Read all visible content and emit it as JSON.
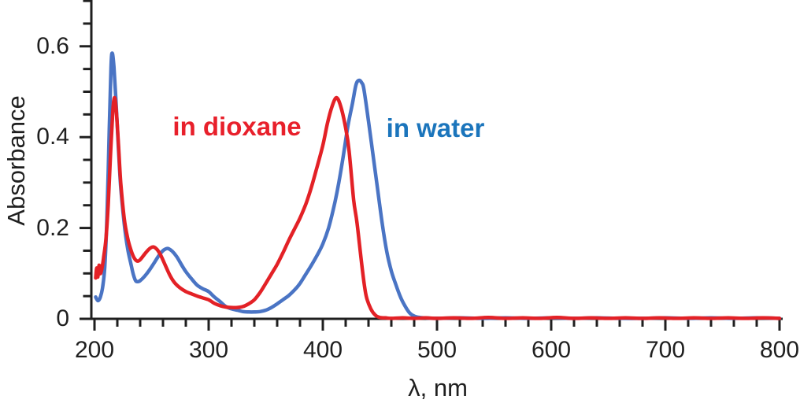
{
  "chart_data": {
    "type": "line",
    "title": "",
    "xlabel": "λ, nm",
    "ylabel": "Absorbance",
    "xlim": [
      200,
      800
    ],
    "ylim": [
      0,
      0.7
    ],
    "grid": false,
    "background": "#ffffff",
    "axis_color": "#1f1f1f",
    "x_major_ticks": [
      200,
      300,
      400,
      500,
      600,
      700,
      800
    ],
    "x_tick_labels": [
      "200",
      "300",
      "400",
      "500",
      "600",
      "700",
      "800"
    ],
    "x_minor_tick_step": 20,
    "y_major_ticks": [
      0,
      0.2,
      0.4,
      0.6
    ],
    "y_tick_labels": [
      "0",
      "0.2",
      "0.4",
      "0.6"
    ],
    "y_minor_tick_step": 0.05,
    "legend_position": "inline text annotations near main peaks",
    "annotations": [
      {
        "text": "in dioxane",
        "color": "#e8202b"
      },
      {
        "text": "in water",
        "color": "#1b75bc"
      }
    ],
    "series": [
      {
        "name": "in water",
        "color": "#4a74c4",
        "points": [
          [
            201,
            0.048
          ],
          [
            203,
            0.04
          ],
          [
            205,
            0.047
          ],
          [
            207,
            0.068
          ],
          [
            209,
            0.115
          ],
          [
            211,
            0.23
          ],
          [
            213,
            0.42
          ],
          [
            214.5,
            0.555
          ],
          [
            215.5,
            0.585
          ],
          [
            217,
            0.555
          ],
          [
            219,
            0.47
          ],
          [
            221,
            0.375
          ],
          [
            223,
            0.29
          ],
          [
            226,
            0.21
          ],
          [
            229,
            0.155
          ],
          [
            232,
            0.12
          ],
          [
            234,
            0.098
          ],
          [
            236,
            0.084
          ],
          [
            238,
            0.082
          ],
          [
            240,
            0.084
          ],
          [
            244,
            0.094
          ],
          [
            248,
            0.107
          ],
          [
            252,
            0.122
          ],
          [
            256,
            0.138
          ],
          [
            260,
            0.15
          ],
          [
            264,
            0.155
          ],
          [
            268,
            0.149
          ],
          [
            272,
            0.137
          ],
          [
            276,
            0.12
          ],
          [
            280,
            0.104
          ],
          [
            285,
            0.088
          ],
          [
            290,
            0.074
          ],
          [
            295,
            0.066
          ],
          [
            300,
            0.06
          ],
          [
            305,
            0.048
          ],
          [
            310,
            0.038
          ],
          [
            315,
            0.027
          ],
          [
            320,
            0.022
          ],
          [
            325,
            0.019
          ],
          [
            330,
            0.016
          ],
          [
            335,
            0.015
          ],
          [
            340,
            0.015
          ],
          [
            345,
            0.016
          ],
          [
            350,
            0.019
          ],
          [
            355,
            0.025
          ],
          [
            360,
            0.033
          ],
          [
            365,
            0.042
          ],
          [
            370,
            0.051
          ],
          [
            375,
            0.063
          ],
          [
            380,
            0.078
          ],
          [
            385,
            0.098
          ],
          [
            390,
            0.118
          ],
          [
            395,
            0.14
          ],
          [
            400,
            0.165
          ],
          [
            405,
            0.2
          ],
          [
            410,
            0.25
          ],
          [
            414,
            0.3
          ],
          [
            418,
            0.36
          ],
          [
            422,
            0.425
          ],
          [
            426,
            0.475
          ],
          [
            429,
            0.515
          ],
          [
            431.5,
            0.525
          ],
          [
            434,
            0.52
          ],
          [
            436,
            0.505
          ],
          [
            440,
            0.435
          ],
          [
            444,
            0.36
          ],
          [
            448,
            0.285
          ],
          [
            452,
            0.21
          ],
          [
            456,
            0.148
          ],
          [
            460,
            0.105
          ],
          [
            464,
            0.075
          ],
          [
            468,
            0.048
          ],
          [
            472,
            0.028
          ],
          [
            476,
            0.013
          ],
          [
            480,
            0.006
          ],
          [
            485,
            0.003
          ],
          [
            490,
            0.002
          ],
          [
            500,
            0.001
          ],
          [
            520,
            0.002
          ],
          [
            540,
            0.001
          ],
          [
            560,
            0.002
          ],
          [
            580,
            0.001
          ],
          [
            600,
            0.002
          ],
          [
            620,
            0.001
          ],
          [
            640,
            0.002
          ],
          [
            660,
            0.001
          ],
          [
            680,
            0.001
          ],
          [
            700,
            0.002
          ],
          [
            720,
            0.001
          ],
          [
            740,
            0.002
          ],
          [
            760,
            0.001
          ],
          [
            780,
            0.002
          ],
          [
            800,
            0.001
          ]
        ]
      },
      {
        "name": "in dioxane",
        "color": "#e32126",
        "points": [
          [
            201,
            0.09
          ],
          [
            202,
            0.112
          ],
          [
            203,
            0.092
          ],
          [
            204,
            0.118
          ],
          [
            205,
            0.1
          ],
          [
            206,
            0.105
          ],
          [
            207,
            0.118
          ],
          [
            208,
            0.135
          ],
          [
            210,
            0.175
          ],
          [
            212,
            0.25
          ],
          [
            214,
            0.36
          ],
          [
            216,
            0.455
          ],
          [
            217.5,
            0.487
          ],
          [
            219,
            0.46
          ],
          [
            221,
            0.385
          ],
          [
            223,
            0.3
          ],
          [
            226,
            0.222
          ],
          [
            229,
            0.178
          ],
          [
            232,
            0.151
          ],
          [
            235,
            0.133
          ],
          [
            238,
            0.127
          ],
          [
            241,
            0.133
          ],
          [
            245,
            0.146
          ],
          [
            249,
            0.156
          ],
          [
            252,
            0.158
          ],
          [
            255,
            0.152
          ],
          [
            258,
            0.14
          ],
          [
            262,
            0.118
          ],
          [
            266,
            0.096
          ],
          [
            270,
            0.08
          ],
          [
            275,
            0.068
          ],
          [
            280,
            0.06
          ],
          [
            285,
            0.055
          ],
          [
            290,
            0.05
          ],
          [
            295,
            0.046
          ],
          [
            300,
            0.042
          ],
          [
            305,
            0.034
          ],
          [
            310,
            0.029
          ],
          [
            315,
            0.026
          ],
          [
            320,
            0.025
          ],
          [
            325,
            0.025
          ],
          [
            330,
            0.027
          ],
          [
            335,
            0.033
          ],
          [
            340,
            0.042
          ],
          [
            345,
            0.058
          ],
          [
            350,
            0.078
          ],
          [
            355,
            0.099
          ],
          [
            360,
            0.12
          ],
          [
            365,
            0.145
          ],
          [
            370,
            0.172
          ],
          [
            375,
            0.197
          ],
          [
            380,
            0.222
          ],
          [
            385,
            0.252
          ],
          [
            390,
            0.29
          ],
          [
            395,
            0.335
          ],
          [
            400,
            0.382
          ],
          [
            404,
            0.43
          ],
          [
            408,
            0.467
          ],
          [
            412,
            0.487
          ],
          [
            416,
            0.465
          ],
          [
            420,
            0.42
          ],
          [
            423,
            0.37
          ],
          [
            427,
            0.262
          ],
          [
            430,
            0.21
          ],
          [
            435,
            0.1
          ],
          [
            438,
            0.05
          ],
          [
            442,
            0.022
          ],
          [
            446,
            0.008
          ],
          [
            450,
            0.003
          ],
          [
            455,
            0.002
          ],
          [
            460,
            0.001
          ],
          [
            470,
            0.002
          ],
          [
            480,
            0.001
          ],
          [
            490,
            0.002
          ],
          [
            500,
            0.001
          ],
          [
            515,
            0.002
          ],
          [
            530,
            0.001
          ],
          [
            545,
            0.003
          ],
          [
            560,
            0.001
          ],
          [
            575,
            0.002
          ],
          [
            590,
            0.001
          ],
          [
            605,
            0.003
          ],
          [
            620,
            0.001
          ],
          [
            635,
            0.002
          ],
          [
            650,
            0.001
          ],
          [
            665,
            0.002
          ],
          [
            680,
            0.001
          ],
          [
            695,
            0.002
          ],
          [
            710,
            0.001
          ],
          [
            725,
            0.002
          ],
          [
            740,
            0.001
          ],
          [
            755,
            0.002
          ],
          [
            770,
            0.001
          ],
          [
            785,
            0.002
          ],
          [
            800,
            0.001
          ]
        ]
      }
    ]
  }
}
